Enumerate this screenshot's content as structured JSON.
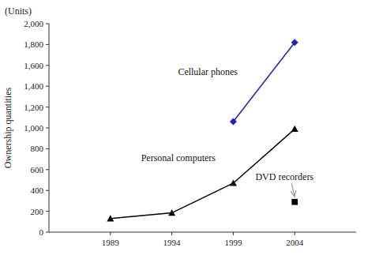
{
  "chart_data": {
    "type": "line",
    "y_label": "Ownership quantities",
    "y_units_label": "(Units)",
    "x": [
      1989,
      1994,
      1999,
      2004
    ],
    "series": [
      {
        "color": "#000000",
        "marker": "triangle",
        "line_style": "solid",
        "values": [
          130,
          185,
          470,
          990
        ]
      },
      {
        "color": "#2222aa",
        "marker": "diamond",
        "line_style": "solid",
        "values": [
          null,
          null,
          1060,
          1820
        ]
      },
      {
        "color": "#000000",
        "marker": "square",
        "line_style": "solid",
        "values": [
          null,
          null,
          null,
          290
        ]
      }
    ],
    "annotations": [
      {
        "text": "Cellular phones",
        "x": 1994.5,
        "y": 1540
      },
      {
        "text": "Personal computers",
        "x": 1991.5,
        "y": 710
      },
      {
        "text": "DVD recorders",
        "x": 2000.8,
        "y": 530,
        "arrow_x": 2004,
        "arrow_y": 295,
        "color": "#999999"
      }
    ],
    "xlim": [
      1984,
      2009
    ],
    "xticks": [
      1989,
      1994,
      1999,
      2004
    ],
    "ylim": [
      0,
      2000
    ],
    "yticks": [
      0,
      200,
      400,
      600,
      800,
      {
        "value": 1000,
        "label": "1,000"
      },
      {
        "value": 1200,
        "label": "1,200"
      },
      {
        "value": 1400,
        "label": "1,400"
      },
      {
        "value": 1600,
        "label": "1,600"
      },
      {
        "value": 1800,
        "label": "1,800"
      },
      {
        "value": 2000,
        "label": "2,000"
      }
    ],
    "grid": false
  }
}
